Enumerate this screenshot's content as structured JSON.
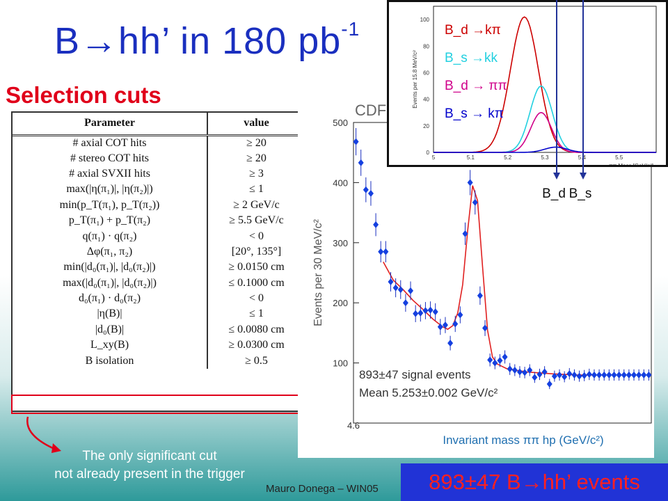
{
  "slide": {
    "title_main": "B→hh’ in 180 pb",
    "title_sup": "-1",
    "section_title": "Selection cuts",
    "note_line1": "The only significant cut",
    "note_line2": "not already present in the trigger",
    "footer": "Mauro Donega – WIN05",
    "result_banner": "893±47 B→hh’ events"
  },
  "cuts_table": {
    "headers": [
      "Parameter",
      "value"
    ],
    "rows": [
      [
        "# axial COT hits",
        "≥ 20"
      ],
      [
        "# stereo COT hits",
        "≥ 20"
      ],
      [
        "# axial SVXII hits",
        "≥ 3"
      ],
      [
        "max(|η(π₁)|, |η(π₂)|)",
        "≤ 1"
      ],
      [
        "min(p_T(π₁), p_T(π₂))",
        "≥ 2 GeV/c"
      ],
      [
        "p_T(π₁) + p_T(π₂)",
        "≥ 5.5 GeV/c"
      ],
      [
        "q(π₁) · q(π₂)",
        "< 0"
      ],
      [
        "Δφ(π₁, π₂)",
        "[20°, 135°]"
      ],
      [
        "min(|d₀(π₁)|, |d₀(π₂)|)",
        "≥ 0.0150 cm"
      ],
      [
        "max(|d₀(π₁)|, |d₀(π₂)|)",
        "≤ 0.1000 cm"
      ],
      [
        "d₀(π₁) · d₀(π₂)",
        "< 0"
      ],
      [
        "|η(B)|",
        "≤ 1"
      ],
      [
        "|d₀(B)|",
        "≤ 0.0080 cm"
      ],
      [
        "L_xy(B)",
        "≥ 0.0300 cm"
      ],
      [
        "B isolation",
        "≥ 0.5"
      ]
    ]
  },
  "chart_data": [
    {
      "type": "scatter",
      "title": "CDF",
      "xlabel": "Invariant mass ππ hp (GeV/c²)",
      "ylabel": "Events per 30 MeV/c²",
      "xlim": [
        4.6,
        5.8
      ],
      "ylim": [
        0,
        500
      ],
      "xticks": [
        "4.6"
      ],
      "yticks": [
        "100",
        "200",
        "300",
        "400",
        "500"
      ],
      "annotations": [
        "893±47 signal events",
        "Mean 5.253±0.002 GeV/c²"
      ],
      "markers": [
        "B_d",
        "B_s"
      ],
      "series": [
        {
          "x": [
            4.61,
            4.63,
            4.65,
            4.67,
            4.69,
            4.71,
            4.73,
            4.75,
            4.77,
            4.79,
            4.81,
            4.83,
            4.85,
            4.87,
            4.89,
            4.91,
            4.93,
            4.95,
            4.97,
            4.99,
            5.01,
            5.03,
            5.05,
            5.07,
            5.09,
            5.11,
            5.13,
            5.15,
            5.17,
            5.19,
            5.21,
            5.23,
            5.25,
            5.27,
            5.29,
            5.31,
            5.33,
            5.35,
            5.37,
            5.39,
            5.41,
            5.43,
            5.45,
            5.47,
            5.49,
            5.51,
            5.53,
            5.55,
            5.57,
            5.59,
            5.61,
            5.63,
            5.65,
            5.67,
            5.69,
            5.71,
            5.73,
            5.75,
            5.77,
            5.79
          ],
          "values": [
            468,
            433,
            388,
            382,
            330,
            285,
            285,
            235,
            225,
            222,
            200,
            220,
            182,
            183,
            187,
            188,
            185,
            160,
            163,
            133,
            165,
            180,
            315,
            400,
            367,
            212,
            158,
            105,
            100,
            104,
            110,
            90,
            88,
            85,
            84,
            88,
            76,
            81,
            85,
            65,
            78,
            80,
            77,
            82,
            80,
            78,
            79,
            81,
            80,
            80,
            80,
            80,
            80,
            80,
            80,
            80,
            80,
            80,
            80,
            80
          ]
        }
      ],
      "fit_curve": {
        "x": [
          4.72,
          4.76,
          4.8,
          4.84,
          4.88,
          4.92,
          4.96,
          4.98,
          5.0,
          5.02,
          5.04,
          5.06,
          5.08,
          5.1,
          5.12,
          5.14,
          5.16,
          5.18,
          5.22,
          5.3,
          5.4,
          5.5,
          5.58
        ],
        "values": [
          268,
          238,
          222,
          204,
          189,
          173,
          160,
          156,
          162,
          183,
          230,
          320,
          395,
          370,
          260,
          155,
          110,
          98,
          90,
          85,
          82,
          80,
          80
        ]
      }
    },
    {
      "type": "line",
      "xlabel": "ππ Mass [GeV/c²]",
      "ylabel": "Events per 15.8 MeV/c²",
      "xlim": [
        5.0,
        5.6
      ],
      "ylim": [
        0,
        110
      ],
      "xticks": [
        "5",
        "5.1",
        "5.2",
        "5.3",
        "5.4",
        "5.5"
      ],
      "yticks": [
        "0",
        "20",
        "40",
        "60",
        "80",
        "100"
      ],
      "series": [
        {
          "name": "B_d →kπ",
          "color": "#cc0000",
          "mean": 5.245,
          "sigma": 0.038,
          "peak": 102
        },
        {
          "name": "B_s →kk",
          "color": "#22d0e0",
          "mean": 5.29,
          "sigma": 0.03,
          "peak": 50
        },
        {
          "name": "B_d → ππ",
          "color": "#d0008a",
          "mean": 5.29,
          "sigma": 0.028,
          "peak": 30
        },
        {
          "name": "B_s → kπ",
          "color": "#0000cc",
          "mean": 5.33,
          "sigma": 0.03,
          "peak": 4
        }
      ]
    }
  ]
}
